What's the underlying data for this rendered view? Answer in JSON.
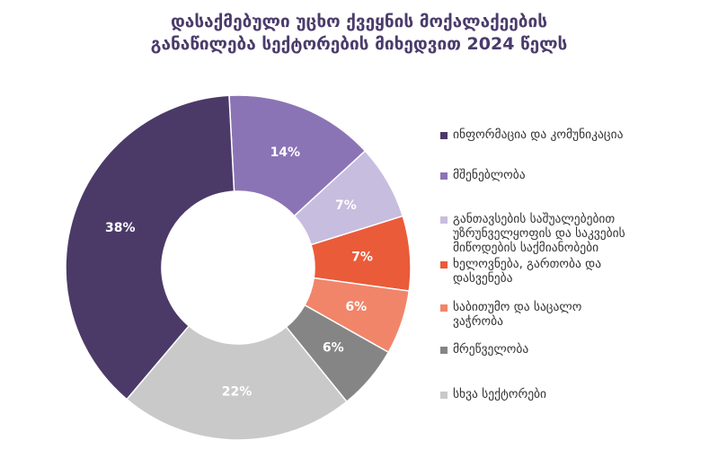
{
  "chart_data": {
    "type": "pie",
    "donut": true,
    "title": [
      "დასაქმებული უცხო ქვეყნის მოქალაქეების",
      "განაწილება სექტორების მიხედვით 2024 წელს"
    ],
    "categories": [
      "ინფორმაცია და კომუნიკაცია",
      "მშენებლობა",
      " განთავსების საშუალებებით\nუზრუნველყოფის და საკვების\nმიწოდების საქმიანობები",
      "ხელოვნება, გართობა და\nდასვენება",
      "საბითუმო და საცალო\nვაჭრობა",
      "მრეწველობა",
      "სხვა სექტორები"
    ],
    "values": [
      14,
      7,
      7,
      6,
      6,
      22,
      38
    ],
    "value_labels": [
      "14%",
      "7%",
      "7%",
      "6%",
      "6%",
      "22%",
      "38%"
    ],
    "unit": "%",
    "legend_position": "right",
    "label_color": "#ffffff"
  },
  "legend_order_note_free": true,
  "colors": [
    "#8b74b5",
    "#c7bddf",
    "#ea5b3a",
    "#f1856a",
    "#858585",
    "#c9c9c9",
    "#4b3a68"
  ],
  "legend_colors": [
    "#4b3a68",
    "#8b74b5",
    "#c7bddf",
    "#ea5b3a",
    "#f1856a",
    "#858585",
    "#c9c9c9"
  ],
  "legend_labels": [
    "ინფორმაცია და კომუნიკაცია",
    "მშენებლობა",
    " განთავსების საშუალებებით\nუზრუნველყოფის და საკვების\nმიწოდების საქმიანობები",
    "ხელოვნება, გართობა და\nდასვენება",
    "საბითუმო და საცალო\nვაჭრობა",
    "მრეწველობა",
    "სხვა სექტორები"
  ]
}
